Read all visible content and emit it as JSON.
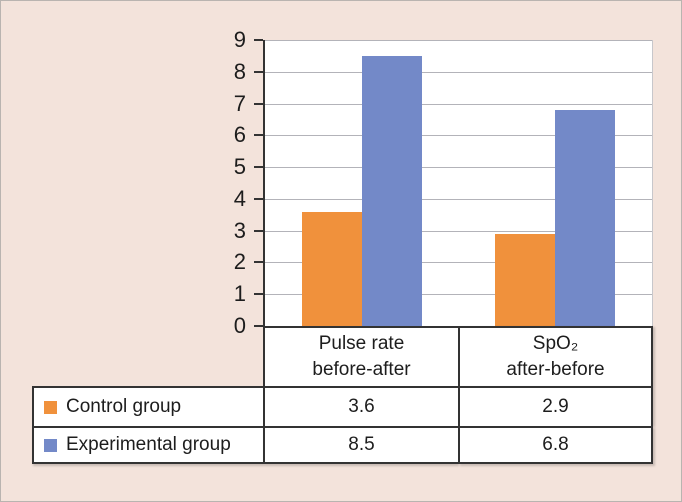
{
  "chart_data": {
    "type": "bar",
    "title": "",
    "categories": [
      {
        "line1": "Pulse rate",
        "line2": "before-after"
      },
      {
        "line1": "SpO₂",
        "line2": "after-before"
      }
    ],
    "series": [
      {
        "name": "Control group",
        "color": "#F0913C",
        "values": [
          3.6,
          2.9
        ]
      },
      {
        "name": "Experimental group",
        "color": "#7389C8",
        "values": [
          8.5,
          6.8
        ]
      }
    ],
    "ylim": [
      0,
      9
    ],
    "ytick_step": 1,
    "grid": true,
    "legend_position": "bottom-left-table",
    "plot_background": "#ffffff",
    "figure_background": "#F3E3DB",
    "gridline_color": "#b3b3b9",
    "axis_color": "#333333"
  }
}
